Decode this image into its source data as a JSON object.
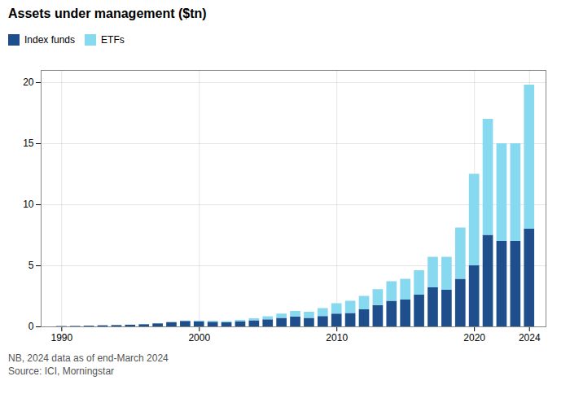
{
  "chart_data": {
    "type": "bar",
    "title": "Assets under management ($tn)",
    "stacked": true,
    "x": [
      1990,
      1991,
      1992,
      1993,
      1994,
      1995,
      1996,
      1997,
      1998,
      1999,
      2000,
      2001,
      2002,
      2003,
      2004,
      2005,
      2006,
      2007,
      2008,
      2009,
      2010,
      2011,
      2012,
      2013,
      2014,
      2015,
      2016,
      2017,
      2018,
      2019,
      2020,
      2021,
      2022,
      2023,
      2024
    ],
    "series": [
      {
        "name": "Index funds",
        "color": "#1f4e8c",
        "values": [
          0.03,
          0.04,
          0.06,
          0.09,
          0.11,
          0.14,
          0.18,
          0.25,
          0.35,
          0.45,
          0.42,
          0.38,
          0.35,
          0.42,
          0.5,
          0.58,
          0.7,
          0.82,
          0.7,
          0.85,
          1.05,
          1.1,
          1.4,
          1.75,
          2.1,
          2.2,
          2.6,
          3.2,
          3.0,
          3.9,
          5.0,
          7.5,
          7.0,
          7.0,
          8.0
        ]
      },
      {
        "name": "ETFs",
        "color": "#87d9f0",
        "values": [
          0.0,
          0.0,
          0.0,
          0.0,
          0.0,
          0.0,
          0.01,
          0.01,
          0.02,
          0.03,
          0.06,
          0.08,
          0.08,
          0.12,
          0.17,
          0.25,
          0.35,
          0.45,
          0.5,
          0.65,
          0.85,
          1.0,
          1.1,
          1.3,
          1.6,
          1.7,
          2.0,
          2.5,
          2.7,
          4.2,
          7.5,
          9.5,
          8.0,
          8.0,
          11.8
        ]
      }
    ],
    "xlim": [
      1988.5,
      2025.2
    ],
    "xticks": [
      1990,
      2000,
      2010,
      2020,
      2024
    ],
    "ylim": [
      0,
      21
    ],
    "yticks": [
      0,
      5,
      10,
      15,
      20
    ],
    "grid": true,
    "legend": "upper left",
    "annotations": [
      "NB, 2024 data as of end-March 2024",
      "Source: ICI, Morningstar"
    ]
  }
}
